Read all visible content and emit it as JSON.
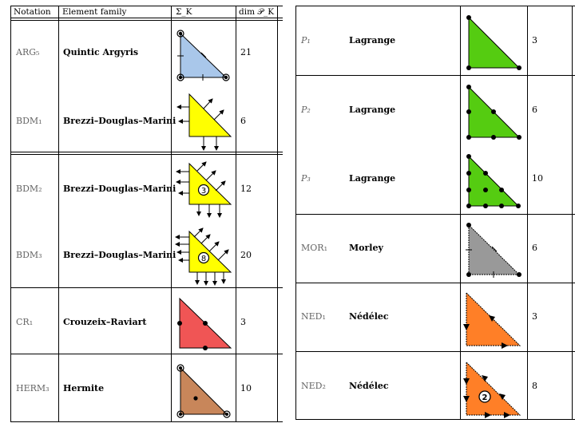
{
  "left_table": {
    "headers": {
      "notation": "Notation",
      "family": "Element family",
      "dofs": "Σ_K",
      "dim": "dim 𝒫_K"
    },
    "rows": [
      {
        "notation": "ARG₅",
        "family": "Quintic Argyris",
        "dim": "21",
        "color": "#a9c7ea"
      },
      {
        "notation": "BDM₁",
        "family": "Brezzi–Douglas–Marini",
        "dim": "6",
        "color": "#ffff00"
      },
      {
        "notation": "BDM₂",
        "family": "Brezzi–Douglas–Marini",
        "dim": "12",
        "color": "#ffff00",
        "badge": "3"
      },
      {
        "notation": "BDM₃",
        "family": "Brezzi–Douglas–Marini",
        "dim": "20",
        "color": "#ffff00",
        "badge": "8"
      },
      {
        "notation": "CR₁",
        "family": "Crouzeix–Raviart",
        "dim": "3",
        "color": "#f05555"
      },
      {
        "notation": "HERM₃",
        "family": "Hermite",
        "dim": "10",
        "color": "#c8865a"
      }
    ]
  },
  "right_table": {
    "rows": [
      {
        "notation": "P₁",
        "family": "Lagrange",
        "dim": "3",
        "color": "#55cc11"
      },
      {
        "notation": "P₂",
        "family": "Lagrange",
        "dim": "6",
        "color": "#55cc11"
      },
      {
        "notation": "P₃",
        "family": "Lagrange",
        "dim": "10",
        "color": "#55cc11"
      },
      {
        "notation": "MOR₁",
        "family": "Morley",
        "dim": "6",
        "color": "#999999"
      },
      {
        "notation": "NED₁",
        "family": "Nédélec",
        "dim": "3",
        "color": "#ff7f27"
      },
      {
        "notation": "NED₂",
        "family": "Nédélec",
        "dim": "8",
        "color": "#ff7f27",
        "badge": "2"
      }
    ]
  }
}
